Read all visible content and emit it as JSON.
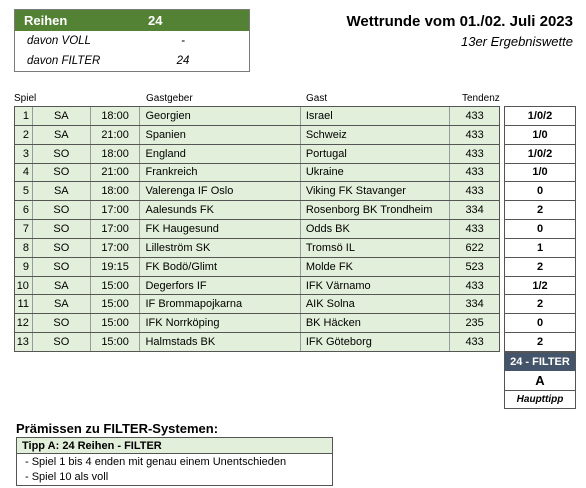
{
  "summary": {
    "header_label": "Reihen",
    "header_value": "24",
    "rows": [
      {
        "label": "davon VOLL",
        "value": "-"
      },
      {
        "label": "davon FILTER",
        "value": "24"
      }
    ]
  },
  "title": "Wettrunde vom 01./02. Juli 2023",
  "subtitle": "13er Ergebniswette",
  "columns": {
    "spiel": "Spiel",
    "gastgeber": "Gastgeber",
    "gast": "Gast",
    "tendenz": "Tendenz"
  },
  "matches": [
    {
      "nr": "1",
      "day": "SA",
      "time": "18:00",
      "home": "Georgien",
      "away": "Israel",
      "tendenz": "433",
      "tip": "1/0/2"
    },
    {
      "nr": "2",
      "day": "SA",
      "time": "21:00",
      "home": "Spanien",
      "away": "Schweiz",
      "tendenz": "433",
      "tip": "1/0"
    },
    {
      "nr": "3",
      "day": "SO",
      "time": "18:00",
      "home": "England",
      "away": "Portugal",
      "tendenz": "433",
      "tip": "1/0/2"
    },
    {
      "nr": "4",
      "day": "SO",
      "time": "21:00",
      "home": "Frankreich",
      "away": "Ukraine",
      "tendenz": "433",
      "tip": "1/0"
    },
    {
      "nr": "5",
      "day": "SA",
      "time": "18:00",
      "home": "Valerenga IF Oslo",
      "away": "Viking FK Stavanger",
      "tendenz": "433",
      "tip": "0"
    },
    {
      "nr": "6",
      "day": "SO",
      "time": "17:00",
      "home": "Aalesunds FK",
      "away": "Rosenborg BK Trondheim",
      "tendenz": "334",
      "tip": "2"
    },
    {
      "nr": "7",
      "day": "SO",
      "time": "17:00",
      "home": "FK Haugesund",
      "away": "Odds BK",
      "tendenz": "433",
      "tip": "0"
    },
    {
      "nr": "8",
      "day": "SO",
      "time": "17:00",
      "home": "Lilleström SK",
      "away": "Tromsö IL",
      "tendenz": "622",
      "tip": "1"
    },
    {
      "nr": "9",
      "day": "SO",
      "time": "19:15",
      "home": "FK Bodö/Glimt",
      "away": "Molde FK",
      "tendenz": "523",
      "tip": "2"
    },
    {
      "nr": "10",
      "day": "SA",
      "time": "15:00",
      "home": "Degerfors IF",
      "away": "IFK Värnamo",
      "tendenz": "433",
      "tip": "1/2"
    },
    {
      "nr": "11",
      "day": "SA",
      "time": "15:00",
      "home": "IF Brommapojkarna",
      "away": "AIK Solna",
      "tendenz": "334",
      "tip": "2"
    },
    {
      "nr": "12",
      "day": "SO",
      "time": "15:00",
      "home": "IFK Norrköping",
      "away": "BK Häcken",
      "tendenz": "235",
      "tip": "0"
    },
    {
      "nr": "13",
      "day": "SO",
      "time": "15:00",
      "home": "Halmstads BK",
      "away": "IFK Göteborg",
      "tendenz": "433",
      "tip": "2"
    }
  ],
  "filter": {
    "head": "24 - FILTER",
    "letter": "A",
    "foot": "Haupttipp"
  },
  "premises": {
    "title": "Prämissen zu FILTER-Systemen:",
    "box_head": "Tipp A: 24 Reihen - FILTER",
    "lines": [
      "- Spiel 1 bis 4 enden mit genau einem Unentschieden",
      "- Spiel 10 als voll"
    ]
  },
  "colors": {
    "header_green": "#548235",
    "row_green": "#e2efda",
    "filter_blue": "#44546a"
  }
}
